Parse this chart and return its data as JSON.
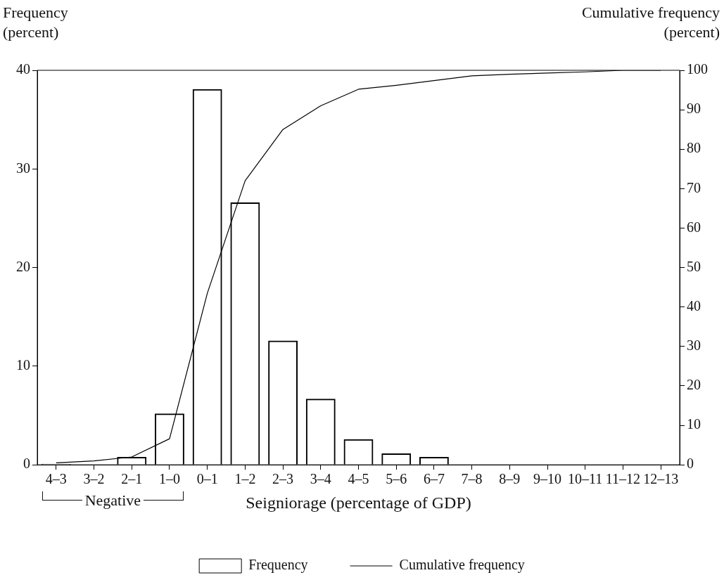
{
  "chart_data": {
    "type": "bar",
    "xlabel": "Seigniorage (percentage of GDP)",
    "ylabel": "Frequency (percent)",
    "y2label": "Cumulative frequency (percent)",
    "categories": [
      "4–3",
      "3–2",
      "2–1",
      "1–0",
      "0–1",
      "1–2",
      "2–3",
      "3–4",
      "4–5",
      "5–6",
      "6–7",
      "7–8",
      "8–9",
      "9–10",
      "10–11",
      "11–12",
      "12–13"
    ],
    "series": [
      {
        "name": "Frequency",
        "color": "#000000",
        "values": [
          0.1,
          0,
          0.8,
          5.2,
          38.1,
          26.6,
          12.6,
          6.7,
          2.6,
          1.15,
          0.8,
          0,
          0,
          0,
          0,
          0,
          0
        ]
      },
      {
        "name": "Cumulative frequency",
        "type": "line",
        "axis": "y2",
        "color": "#000000",
        "values": [
          0.5,
          1,
          2,
          6.6,
          43.5,
          72,
          85,
          91,
          95.2,
          96.2,
          97.4,
          98.6,
          99,
          99.3,
          99.6,
          100,
          100
        ]
      }
    ],
    "ylim": [
      0,
      40
    ],
    "yticks": [
      0,
      10,
      20,
      30,
      40
    ],
    "y2lim": [
      0,
      100
    ],
    "y2ticks": [
      0,
      10,
      20,
      30,
      40,
      50,
      60,
      70,
      80,
      90,
      100
    ],
    "annotations": [
      "Negative"
    ],
    "legend": "bottom",
    "grid": false,
    "marker": "none"
  }
}
